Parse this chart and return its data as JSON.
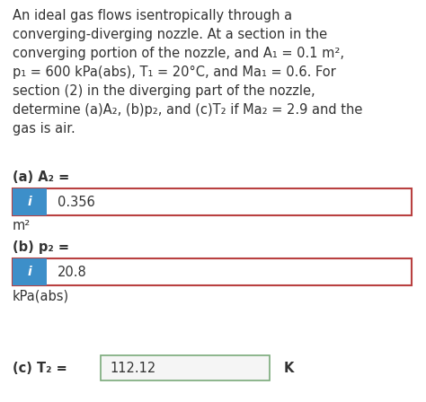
{
  "title_text": "An ideal gas flows isentropically through a\nconverging-diverging nozzle. At a section in the\nconverging portion of the nozzle, and A₁ = 0.1 m²,\np₁ = 600 kPa(abs), T₁ = 20°C, and Ma₁ = 0.6. For\nsection (2) in the diverging part of the nozzle,\ndetermine (a)A₂, (b)p₂, and (c)T₂ if Ma₂ = 2.9 and the\ngas is air.",
  "part_a_label": "(a) A₂ =",
  "part_a_value": "0.356",
  "part_a_unit": "m²",
  "part_b_label": "(b) p₂ =",
  "part_b_value": "20.8",
  "part_b_unit": "kPa(abs)",
  "part_c_label": "(c) T₂ =",
  "part_c_value": "112.12",
  "part_c_unit": "K",
  "bg_color": "#ffffff",
  "text_color": "#333333",
  "info_box_bg": "#3d8fc9",
  "info_icon_text": "i",
  "answer_box_border": "#b94040",
  "answer_box_border_c": "#7aaa7a",
  "answer_box_bg": "#ffffff",
  "answer_box_bg_c": "#f5f5f5",
  "font_size_body": 10.5,
  "font_size_label": 10.5,
  "fig_width": 4.74,
  "fig_height": 4.48,
  "dpi": 100
}
